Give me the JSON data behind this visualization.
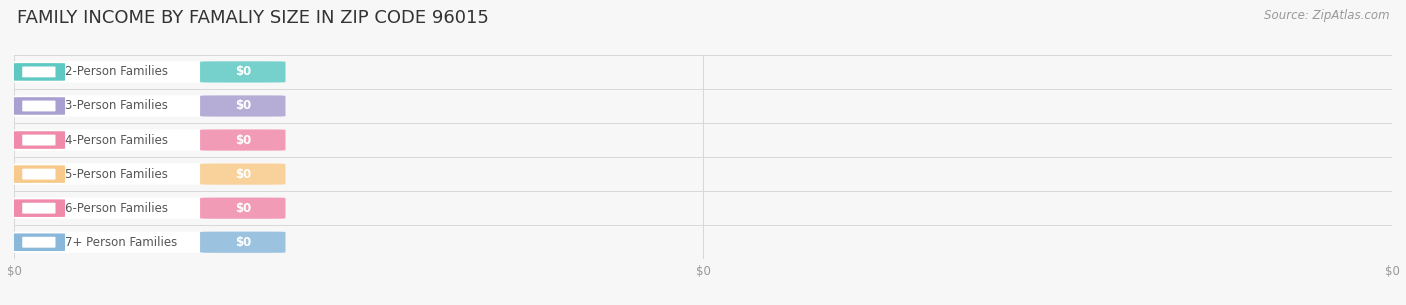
{
  "title": "FAMILY INCOME BY FAMALIY SIZE IN ZIP CODE 96015",
  "source": "Source: ZipAtlas.com",
  "categories": [
    "2-Person Families",
    "3-Person Families",
    "4-Person Families",
    "5-Person Families",
    "6-Person Families",
    "7+ Person Families"
  ],
  "values": [
    0,
    0,
    0,
    0,
    0,
    0
  ],
  "bar_colors": [
    "#5ec8c2",
    "#a99fd0",
    "#f08aaa",
    "#f7c98a",
    "#f08aaa",
    "#8ab8da"
  ],
  "background_color": "#f7f7f7",
  "title_fontsize": 13,
  "label_fontsize": 8.5,
  "tick_fontsize": 8.5,
  "source_fontsize": 8.5,
  "grid_color": "#d8d8d8",
  "xtick_labels": [
    "$0",
    "$0",
    "$0"
  ],
  "xtick_positions": [
    0.0,
    0.5,
    1.0
  ]
}
